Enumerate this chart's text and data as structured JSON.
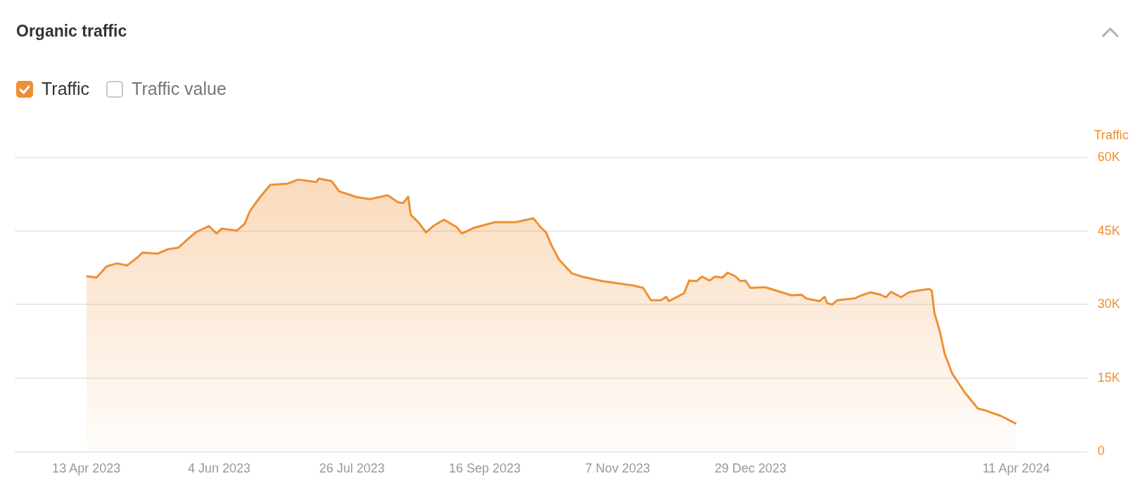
{
  "chart_data": {
    "type": "area",
    "title": "Organic traffic",
    "ylabel": "Traffic",
    "legend": "top left",
    "grid": "y",
    "annotations": [
      "Traffic value"
    ],
    "xlim": [
      "2023-03-16",
      "2024-05-09"
    ],
    "xticks": [
      {
        "value": "2023-04-13",
        "label": "13 Apr 2023"
      },
      {
        "value": "2023-06-04",
        "label": "4 Jun 2023"
      },
      {
        "value": "2023-07-26",
        "label": "26 Jul 2023"
      },
      {
        "value": "2023-09-16",
        "label": "16 Sep 2023"
      },
      {
        "value": "2023-11-07",
        "label": "7 Nov 2023"
      },
      {
        "value": "2023-12-29",
        "label": "29 Dec 2023"
      },
      {
        "value": "2024-04-11",
        "label": "11 Apr 2024"
      }
    ],
    "ylim": [
      0,
      60000
    ],
    "yticks": [
      0,
      {
        "value": 15000,
        "label": "15K"
      },
      {
        "value": 30000,
        "label": "30K"
      },
      {
        "value": 45000,
        "label": "45K"
      },
      {
        "value": 60000,
        "label": "60K"
      }
    ],
    "x": [
      "2023-04-13",
      "2023-04-17",
      "2023-04-21",
      "2023-04-25",
      "2023-04-29",
      "2023-05-03",
      "2023-05-05",
      "2023-05-11",
      "2023-05-15",
      "2023-05-19",
      "2023-05-23",
      "2023-05-26",
      "2023-05-31",
      "2023-06-03",
      "2023-06-05",
      "2023-06-11",
      "2023-06-14",
      "2023-06-16",
      "2023-06-18",
      "2023-06-20",
      "2023-06-24",
      "2023-07-01",
      "2023-07-05",
      "2023-07-12",
      "2023-07-13",
      "2023-07-18",
      "2023-07-21",
      "2023-07-28",
      "2023-08-02",
      "2023-08-09",
      "2023-08-13",
      "2023-08-15",
      "2023-08-17",
      "2023-08-18",
      "2023-08-21",
      "2023-08-24",
      "2023-08-27",
      "2023-08-31",
      "2023-09-05",
      "2023-09-07",
      "2023-09-12",
      "2023-09-20",
      "2023-09-28",
      "2023-10-05",
      "2023-10-08",
      "2023-10-10",
      "2023-10-12",
      "2023-10-15",
      "2023-10-20",
      "2023-10-24",
      "2023-11-01",
      "2023-11-13",
      "2023-11-17",
      "2023-11-20",
      "2023-11-24",
      "2023-11-26",
      "2023-11-27",
      "2023-12-03",
      "2023-12-05",
      "2023-12-08",
      "2023-12-10",
      "2023-12-13",
      "2023-12-15",
      "2023-12-18",
      "2023-12-20",
      "2023-12-23",
      "2023-12-25",
      "2023-12-27",
      "2023-12-29",
      "2024-01-02",
      "2024-01-04",
      "2024-01-14",
      "2024-01-18",
      "2024-01-20",
      "2024-01-25",
      "2024-01-27",
      "2024-01-28",
      "2024-01-30",
      "2024-02-01",
      "2024-02-08",
      "2024-02-10",
      "2024-02-14",
      "2024-02-18",
      "2024-02-20",
      "2024-02-22",
      "2024-02-26",
      "2024-02-29",
      "2024-03-04",
      "2024-03-08",
      "2024-03-09",
      "2024-03-10",
      "2024-03-12",
      "2024-03-14",
      "2024-03-17",
      "2024-03-22",
      "2024-03-27",
      "2024-03-30",
      "2024-04-05",
      "2024-04-11"
    ],
    "series": [
      {
        "name": "Traffic",
        "color": "#ef8f33",
        "values": [
          35800,
          35500,
          37800,
          38400,
          38000,
          39600,
          40600,
          40400,
          41300,
          41600,
          43500,
          44800,
          46000,
          44500,
          45500,
          45100,
          46500,
          49000,
          50500,
          51900,
          54400,
          54700,
          55500,
          55000,
          55700,
          55200,
          53100,
          51900,
          51500,
          52300,
          50900,
          50700,
          52000,
          48300,
          46800,
          44700,
          46100,
          47300,
          45800,
          44500,
          45700,
          46800,
          46800,
          47600,
          45700,
          44700,
          42200,
          39200,
          36400,
          35700,
          34800,
          33900,
          33400,
          30900,
          30900,
          31600,
          30700,
          32300,
          34900,
          34800,
          35700,
          34900,
          35700,
          35500,
          36500,
          35800,
          34800,
          34900,
          33400,
          33500,
          33500,
          31900,
          32000,
          31200,
          30700,
          31600,
          30300,
          30000,
          30900,
          31300,
          31800,
          32500,
          32000,
          31500,
          32600,
          31500,
          32500,
          32900,
          33200,
          32800,
          28300,
          24800,
          20000,
          15900,
          12000,
          8800,
          8400,
          7300,
          5700
        ]
      }
    ]
  }
}
